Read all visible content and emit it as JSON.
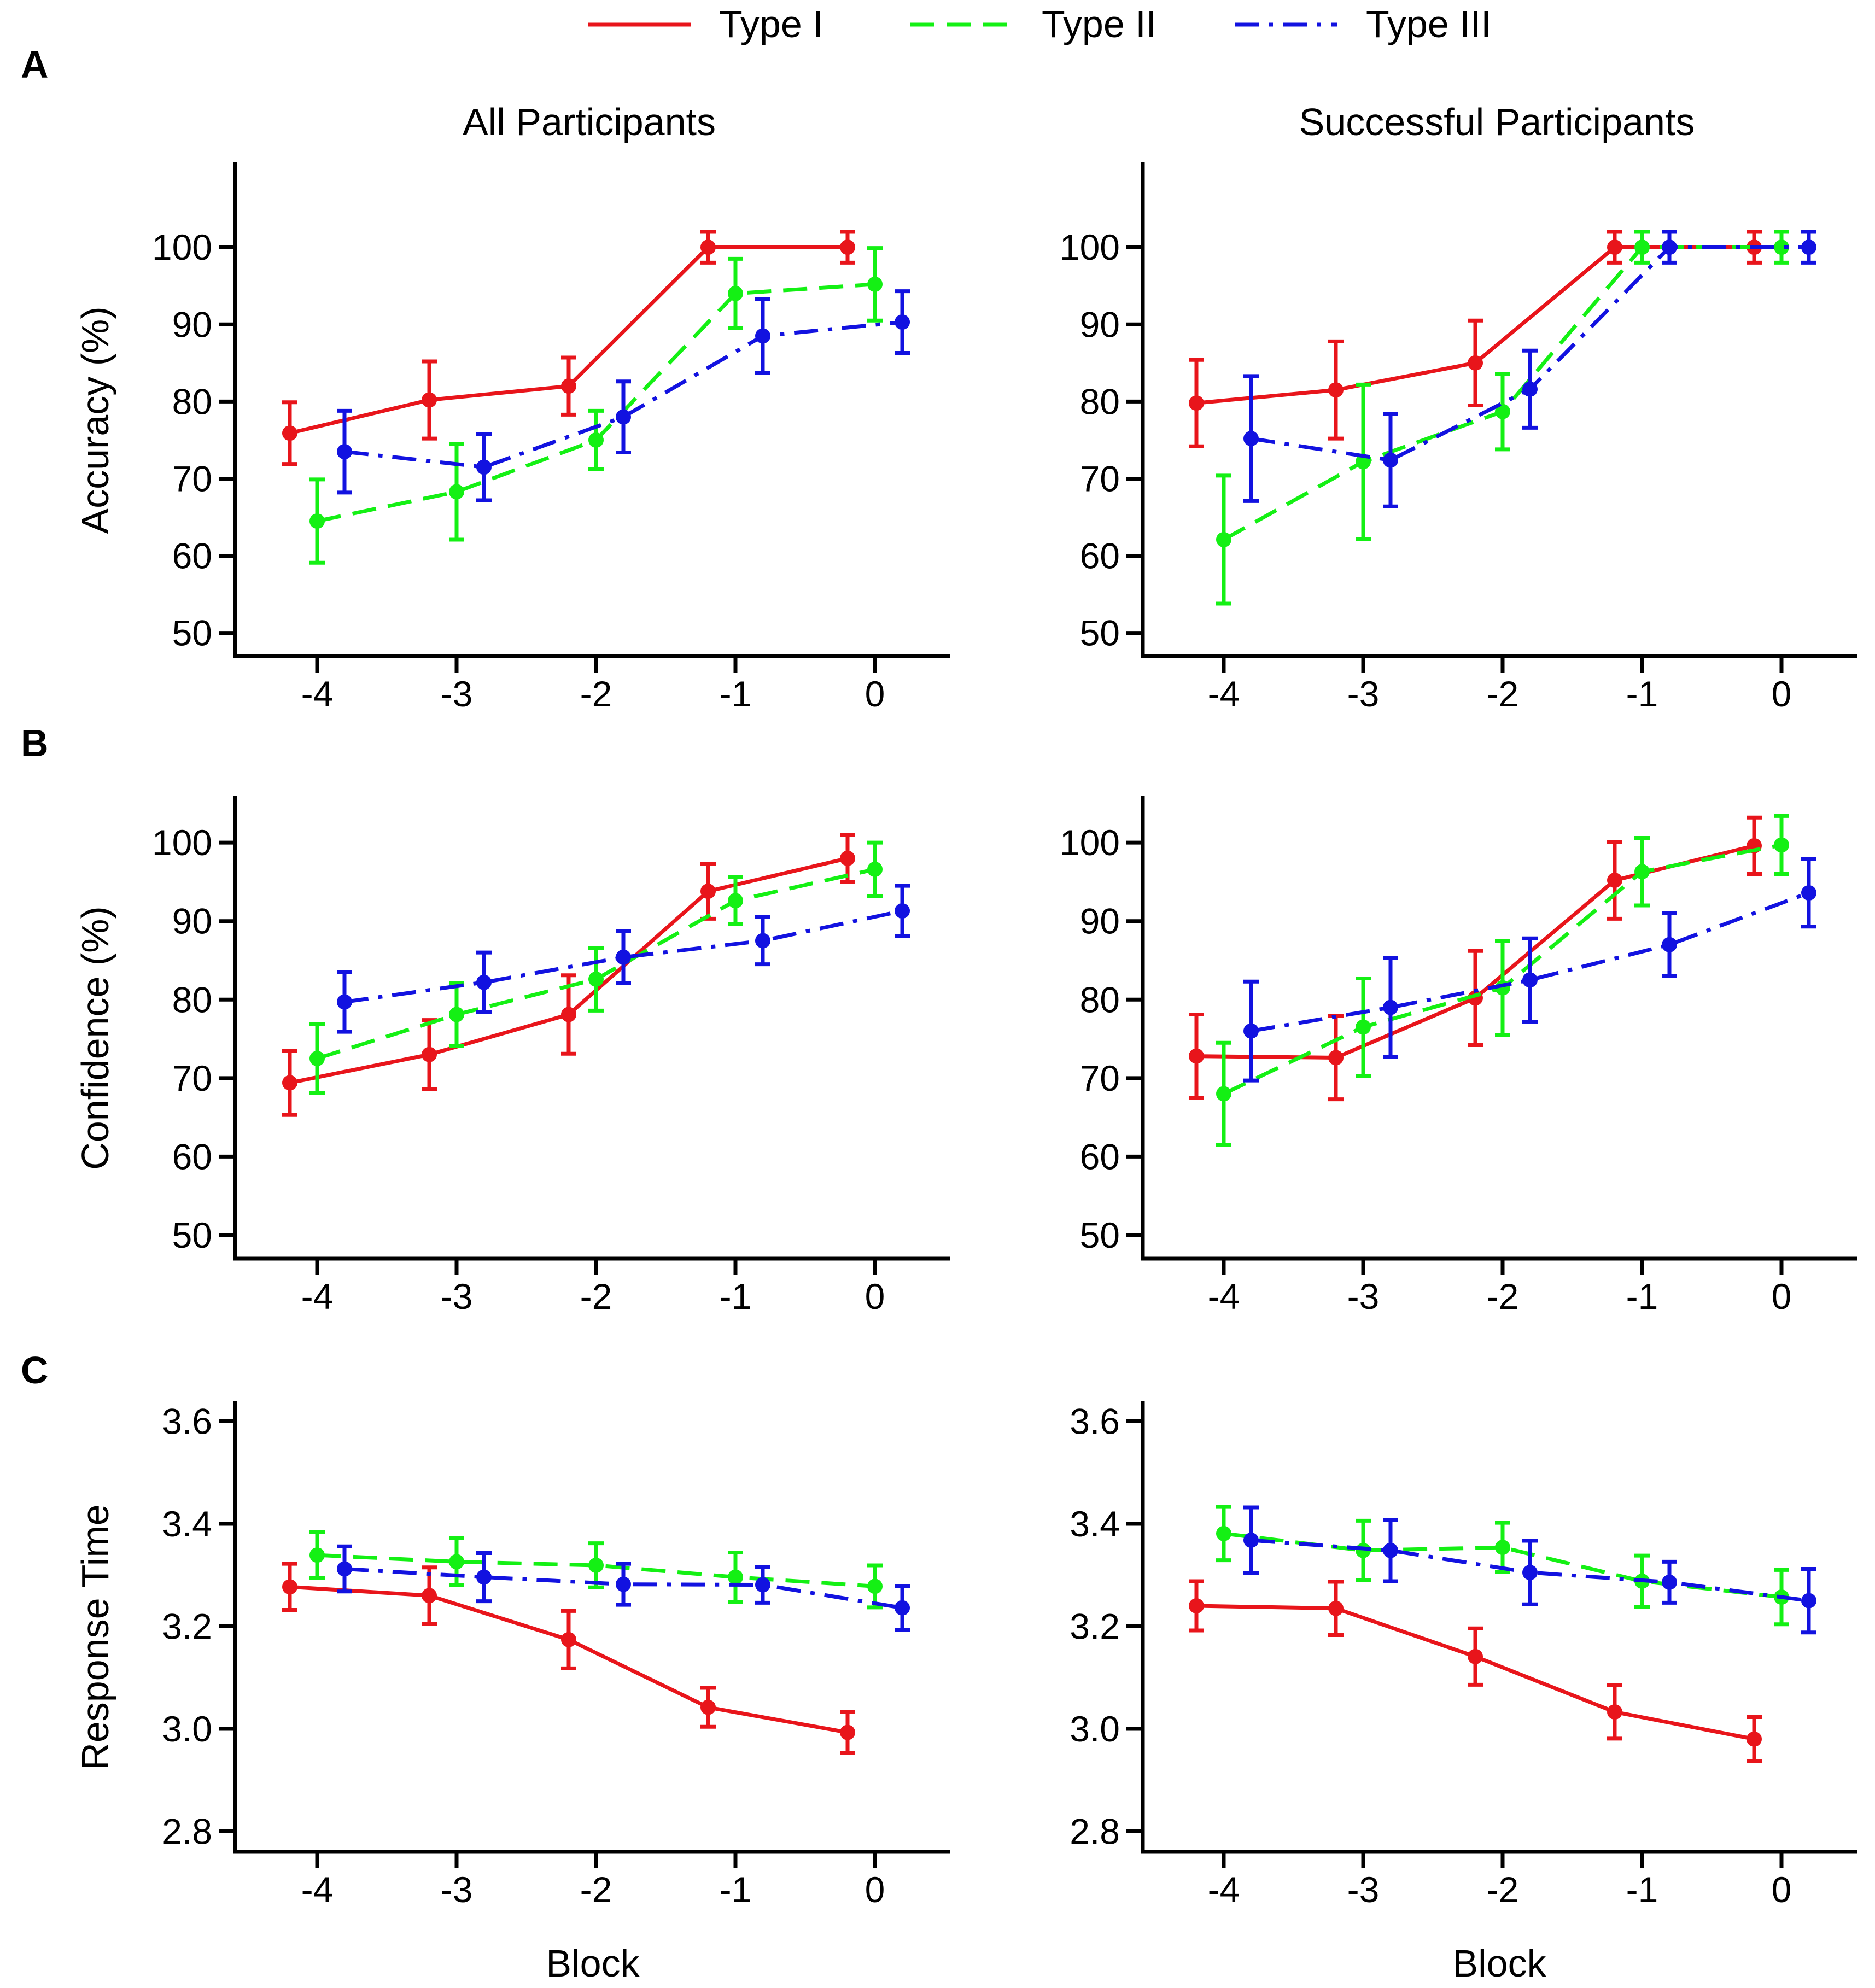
{
  "legend": [
    {
      "name": "Type I",
      "color": "#e8151b",
      "dash": "solid"
    },
    {
      "name": "Type II",
      "color": "#14f014",
      "dash": "dashed"
    },
    {
      "name": "Type III",
      "color": "#1212e0",
      "dash": "dashdot"
    }
  ],
  "columns": [
    "All Participants",
    "Successful Participants"
  ],
  "panel_letters": [
    "A",
    "B",
    "C"
  ],
  "chart_data": [
    {
      "type": "line",
      "row": "A",
      "col": 0,
      "title": "All Participants",
      "xlabel": "",
      "ylabel": "Accuracy (%)",
      "xticks": [
        -4,
        -3,
        -2,
        -1,
        0
      ],
      "xtick_labels": [
        "-4",
        "-3",
        "-2",
        "-1",
        "0"
      ],
      "ylim": [
        47,
        111
      ],
      "yticks": [
        50,
        60,
        70,
        80,
        90,
        100
      ],
      "ytick_labels": [
        "50",
        "60",
        "70",
        "80",
        "90",
        "100"
      ],
      "series": [
        {
          "name": "Type I",
          "x": [
            -4,
            -3,
            -2,
            -1,
            0
          ],
          "y": [
            75.9,
            80.2,
            82.0,
            100.0,
            100.0
          ],
          "err": [
            4.0,
            5.0,
            3.7,
            2.0,
            2.0
          ]
        },
        {
          "name": "Type II",
          "x": [
            -4,
            -3,
            -2,
            -1,
            0
          ],
          "y": [
            64.5,
            68.3,
            75.0,
            94.0,
            95.2
          ],
          "err": [
            5.4,
            6.2,
            3.8,
            4.5,
            4.7
          ]
        },
        {
          "name": "Type III",
          "x": [
            -4,
            -3,
            -2,
            -1,
            0
          ],
          "y": [
            73.5,
            71.5,
            78.0,
            88.5,
            90.3
          ],
          "err": [
            5.3,
            4.3,
            4.6,
            4.8,
            4.0
          ]
        }
      ]
    },
    {
      "type": "line",
      "row": "A",
      "col": 1,
      "title": "Successful Participants",
      "xlabel": "",
      "ylabel": "",
      "xticks": [
        -4,
        -3,
        -2,
        -1,
        0
      ],
      "xtick_labels": [
        "-4",
        "-3",
        "-2",
        "-1",
        "0"
      ],
      "ylim": [
        47,
        111
      ],
      "yticks": [
        50,
        60,
        70,
        80,
        90,
        100
      ],
      "ytick_labels": [
        "50",
        "60",
        "70",
        "80",
        "90",
        "100"
      ],
      "series": [
        {
          "name": "Type I",
          "x": [
            -4,
            -3,
            -2,
            -1,
            0
          ],
          "y": [
            79.8,
            81.5,
            85.0,
            100.0,
            100.0
          ],
          "err": [
            5.6,
            6.3,
            5.5,
            2.0,
            2.0
          ]
        },
        {
          "name": "Type II",
          "x": [
            -4,
            -3,
            -2,
            -1,
            0
          ],
          "y": [
            62.1,
            72.2,
            78.7,
            100.0,
            100.0
          ],
          "err": [
            8.3,
            10.0,
            4.9,
            2.0,
            2.0
          ]
        },
        {
          "name": "Type III",
          "x": [
            -4,
            -3,
            -2,
            -1,
            0
          ],
          "y": [
            75.2,
            72.4,
            81.6,
            100.0,
            100.0
          ],
          "err": [
            8.1,
            6.0,
            5.0,
            2.0,
            2.0
          ]
        }
      ]
    },
    {
      "type": "line",
      "row": "B",
      "col": 0,
      "title": "",
      "xlabel": "",
      "ylabel": "Confidence (%)",
      "xticks": [
        -4,
        -3,
        -2,
        -1,
        0
      ],
      "xtick_labels": [
        "-4",
        "-3",
        "-2",
        "-1",
        "0"
      ],
      "ylim": [
        47,
        106
      ],
      "yticks": [
        50,
        60,
        70,
        80,
        90,
        100
      ],
      "ytick_labels": [
        "50",
        "60",
        "70",
        "80",
        "90",
        "100"
      ],
      "series": [
        {
          "name": "Type I",
          "x": [
            -4,
            -3,
            -2,
            -1,
            0
          ],
          "y": [
            69.4,
            73.0,
            78.1,
            93.8,
            98.0
          ],
          "err": [
            4.1,
            4.4,
            5.0,
            3.5,
            3.0
          ]
        },
        {
          "name": "Type II",
          "x": [
            -4,
            -3,
            -2,
            -1,
            0
          ],
          "y": [
            72.5,
            78.1,
            82.6,
            92.6,
            96.6
          ],
          "err": [
            4.4,
            4.0,
            4.0,
            3.0,
            3.4
          ]
        },
        {
          "name": "Type III",
          "x": [
            -4,
            -3,
            -2,
            -1,
            0
          ],
          "y": [
            79.7,
            82.2,
            85.4,
            87.5,
            91.3
          ],
          "err": [
            3.8,
            3.8,
            3.3,
            3.0,
            3.2
          ]
        }
      ]
    },
    {
      "type": "line",
      "row": "B",
      "col": 1,
      "title": "",
      "xlabel": "",
      "ylabel": "",
      "xticks": [
        -4,
        -3,
        -2,
        -1,
        0
      ],
      "xtick_labels": [
        "-4",
        "-3",
        "-2",
        "-1",
        "0"
      ],
      "ylim": [
        47,
        106
      ],
      "yticks": [
        50,
        60,
        70,
        80,
        90,
        100
      ],
      "ytick_labels": [
        "50",
        "60",
        "70",
        "80",
        "90",
        "100"
      ],
      "series": [
        {
          "name": "Type I",
          "x": [
            -4,
            -3,
            -2,
            -1,
            0
          ],
          "y": [
            72.8,
            72.6,
            80.2,
            95.2,
            99.6
          ],
          "err": [
            5.3,
            5.3,
            6.0,
            4.9,
            3.6
          ]
        },
        {
          "name": "Type II",
          "x": [
            -4,
            -3,
            -2,
            -1,
            0
          ],
          "y": [
            68.0,
            76.5,
            81.5,
            96.3,
            99.7
          ],
          "err": [
            6.5,
            6.2,
            6.0,
            4.3,
            3.7
          ]
        },
        {
          "name": "Type III",
          "x": [
            -4,
            -3,
            -2,
            -1,
            0
          ],
          "y": [
            76.0,
            79.0,
            82.5,
            87.0,
            93.6
          ],
          "err": [
            6.3,
            6.3,
            5.3,
            4.0,
            4.3
          ]
        }
      ]
    },
    {
      "type": "line",
      "row": "C",
      "col": 0,
      "title": "",
      "xlabel": "Block",
      "ylabel": "Response Time",
      "xticks": [
        -4,
        -3,
        -2,
        -1,
        0
      ],
      "xtick_labels": [
        "-4",
        "-3",
        "-2",
        "-1",
        "0"
      ],
      "ylim": [
        2.76,
        3.64
      ],
      "yticks": [
        2.8,
        3.0,
        3.2,
        3.4,
        3.6
      ],
      "ytick_labels": [
        "2.8",
        "3.0",
        "3.2",
        "3.4",
        "3.6"
      ],
      "series": [
        {
          "name": "Type I",
          "x": [
            -4,
            -3,
            -2,
            -1,
            0
          ],
          "y": [
            3.277,
            3.26,
            3.174,
            3.042,
            2.993
          ],
          "err": [
            0.045,
            0.055,
            0.056,
            0.038,
            0.04
          ]
        },
        {
          "name": "Type II",
          "x": [
            -4,
            -3,
            -2,
            -1,
            0
          ],
          "y": [
            3.339,
            3.326,
            3.319,
            3.296,
            3.278
          ],
          "err": [
            0.045,
            0.046,
            0.043,
            0.048,
            0.041
          ]
        },
        {
          "name": "Type III",
          "x": [
            -4,
            -3,
            -2,
            -1,
            0
          ],
          "y": [
            3.312,
            3.296,
            3.282,
            3.281,
            3.236
          ],
          "err": [
            0.044,
            0.047,
            0.04,
            0.035,
            0.043
          ]
        }
      ]
    },
    {
      "type": "line",
      "row": "C",
      "col": 1,
      "title": "",
      "xlabel": "Block",
      "ylabel": "",
      "xticks": [
        -4,
        -3,
        -2,
        -1,
        0
      ],
      "xtick_labels": [
        "-4",
        "-3",
        "-2",
        "-1",
        "0"
      ],
      "ylim": [
        2.76,
        3.64
      ],
      "yticks": [
        2.8,
        3.0,
        3.2,
        3.4,
        3.6
      ],
      "ytick_labels": [
        "2.8",
        "3.0",
        "3.2",
        "3.4",
        "3.6"
      ],
      "series": [
        {
          "name": "Type I",
          "x": [
            -4,
            -3,
            -2,
            -1,
            0
          ],
          "y": [
            3.24,
            3.235,
            3.141,
            3.033,
            2.98
          ],
          "err": [
            0.048,
            0.052,
            0.055,
            0.052,
            0.043
          ]
        },
        {
          "name": "Type II",
          "x": [
            -4,
            -3,
            -2,
            -1,
            0
          ],
          "y": [
            3.381,
            3.348,
            3.354,
            3.288,
            3.257
          ],
          "err": [
            0.052,
            0.058,
            0.048,
            0.05,
            0.053
          ]
        },
        {
          "name": "Type III",
          "x": [
            -4,
            -3,
            -2,
            -1,
            0
          ],
          "y": [
            3.368,
            3.348,
            3.305,
            3.286,
            3.25
          ],
          "err": [
            0.064,
            0.06,
            0.062,
            0.04,
            0.062
          ]
        }
      ]
    }
  ]
}
